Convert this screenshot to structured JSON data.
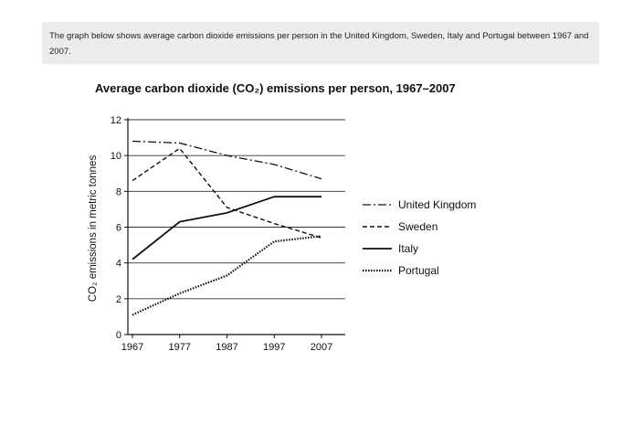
{
  "prompt": {
    "text": "The graph below shows average carbon dioxide emissions per person in the United Kingdom, Sweden, Italy and Portugal between 1967 and 2007."
  },
  "chart_data": {
    "type": "line",
    "title": "Average carbon dioxide (CO₂) emissions per person, 1967–2007",
    "ylabel": "CO₂ emissions in metric tonnes",
    "xlabel": "",
    "x": [
      1967,
      1977,
      1987,
      1997,
      2007
    ],
    "x_ticks": [
      "1967",
      "1977",
      "1987",
      "1997",
      "2007"
    ],
    "ylim": [
      0,
      12
    ],
    "y_ticks": [
      "0",
      "2",
      "4",
      "6",
      "8",
      "10",
      "12"
    ],
    "grid": "horizontal",
    "legend_position": "right",
    "series": [
      {
        "name": "United Kingdom",
        "values": [
          10.8,
          10.7,
          10.0,
          9.5,
          8.7
        ],
        "dash": "dashdot"
      },
      {
        "name": "Sweden",
        "values": [
          8.6,
          10.4,
          7.1,
          6.2,
          5.4
        ],
        "dash": "dashed"
      },
      {
        "name": "Italy",
        "values": [
          4.2,
          6.3,
          6.8,
          7.7,
          7.7
        ],
        "dash": "solid"
      },
      {
        "name": "Portugal",
        "values": [
          1.1,
          2.3,
          3.3,
          5.2,
          5.5
        ],
        "dash": "dotted"
      }
    ]
  }
}
